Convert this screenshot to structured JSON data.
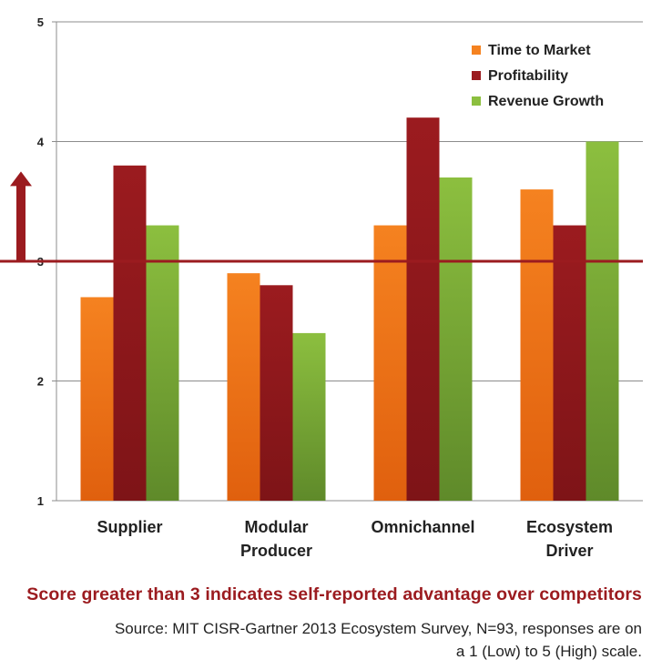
{
  "chart_data": {
    "type": "bar",
    "categories": [
      [
        "Supplier"
      ],
      [
        "Modular",
        "Producer"
      ],
      [
        "Omnichannel"
      ],
      [
        "Ecosystem",
        "Driver"
      ]
    ],
    "series": [
      {
        "name": "Time to Market",
        "values": [
          2.7,
          2.9,
          3.3,
          3.6
        ],
        "color": "#f58220",
        "color_dark": "#e0600e"
      },
      {
        "name": "Profitability",
        "values": [
          3.8,
          2.8,
          4.2,
          3.3
        ],
        "color": "#9b1b1f",
        "color_dark": "#7e1417"
      },
      {
        "name": "Revenue Growth",
        "values": [
          3.3,
          2.4,
          3.7,
          4.0
        ],
        "color": "#8cbf3f",
        "color_dark": "#5f8a2a"
      }
    ],
    "ylim": [
      1,
      5
    ],
    "yticks": [
      "1",
      "2",
      "3",
      "4",
      "5"
    ],
    "grid": true,
    "legend_position": "top-right",
    "reference_line": {
      "value": 3,
      "color": "#9b1b1f"
    },
    "up_arrow": {
      "from": 3,
      "to": 3.75,
      "color": "#9b1b1f"
    }
  },
  "footnote": {
    "highlight": "Score greater than 3 indicates self-reported advantage over competitors",
    "source_line1": "Source: MIT CISR-Gartner 2013 Ecosystem Survey, N=93, responses are on",
    "source_line2": "a 1 (Low) to 5 (High) scale."
  }
}
